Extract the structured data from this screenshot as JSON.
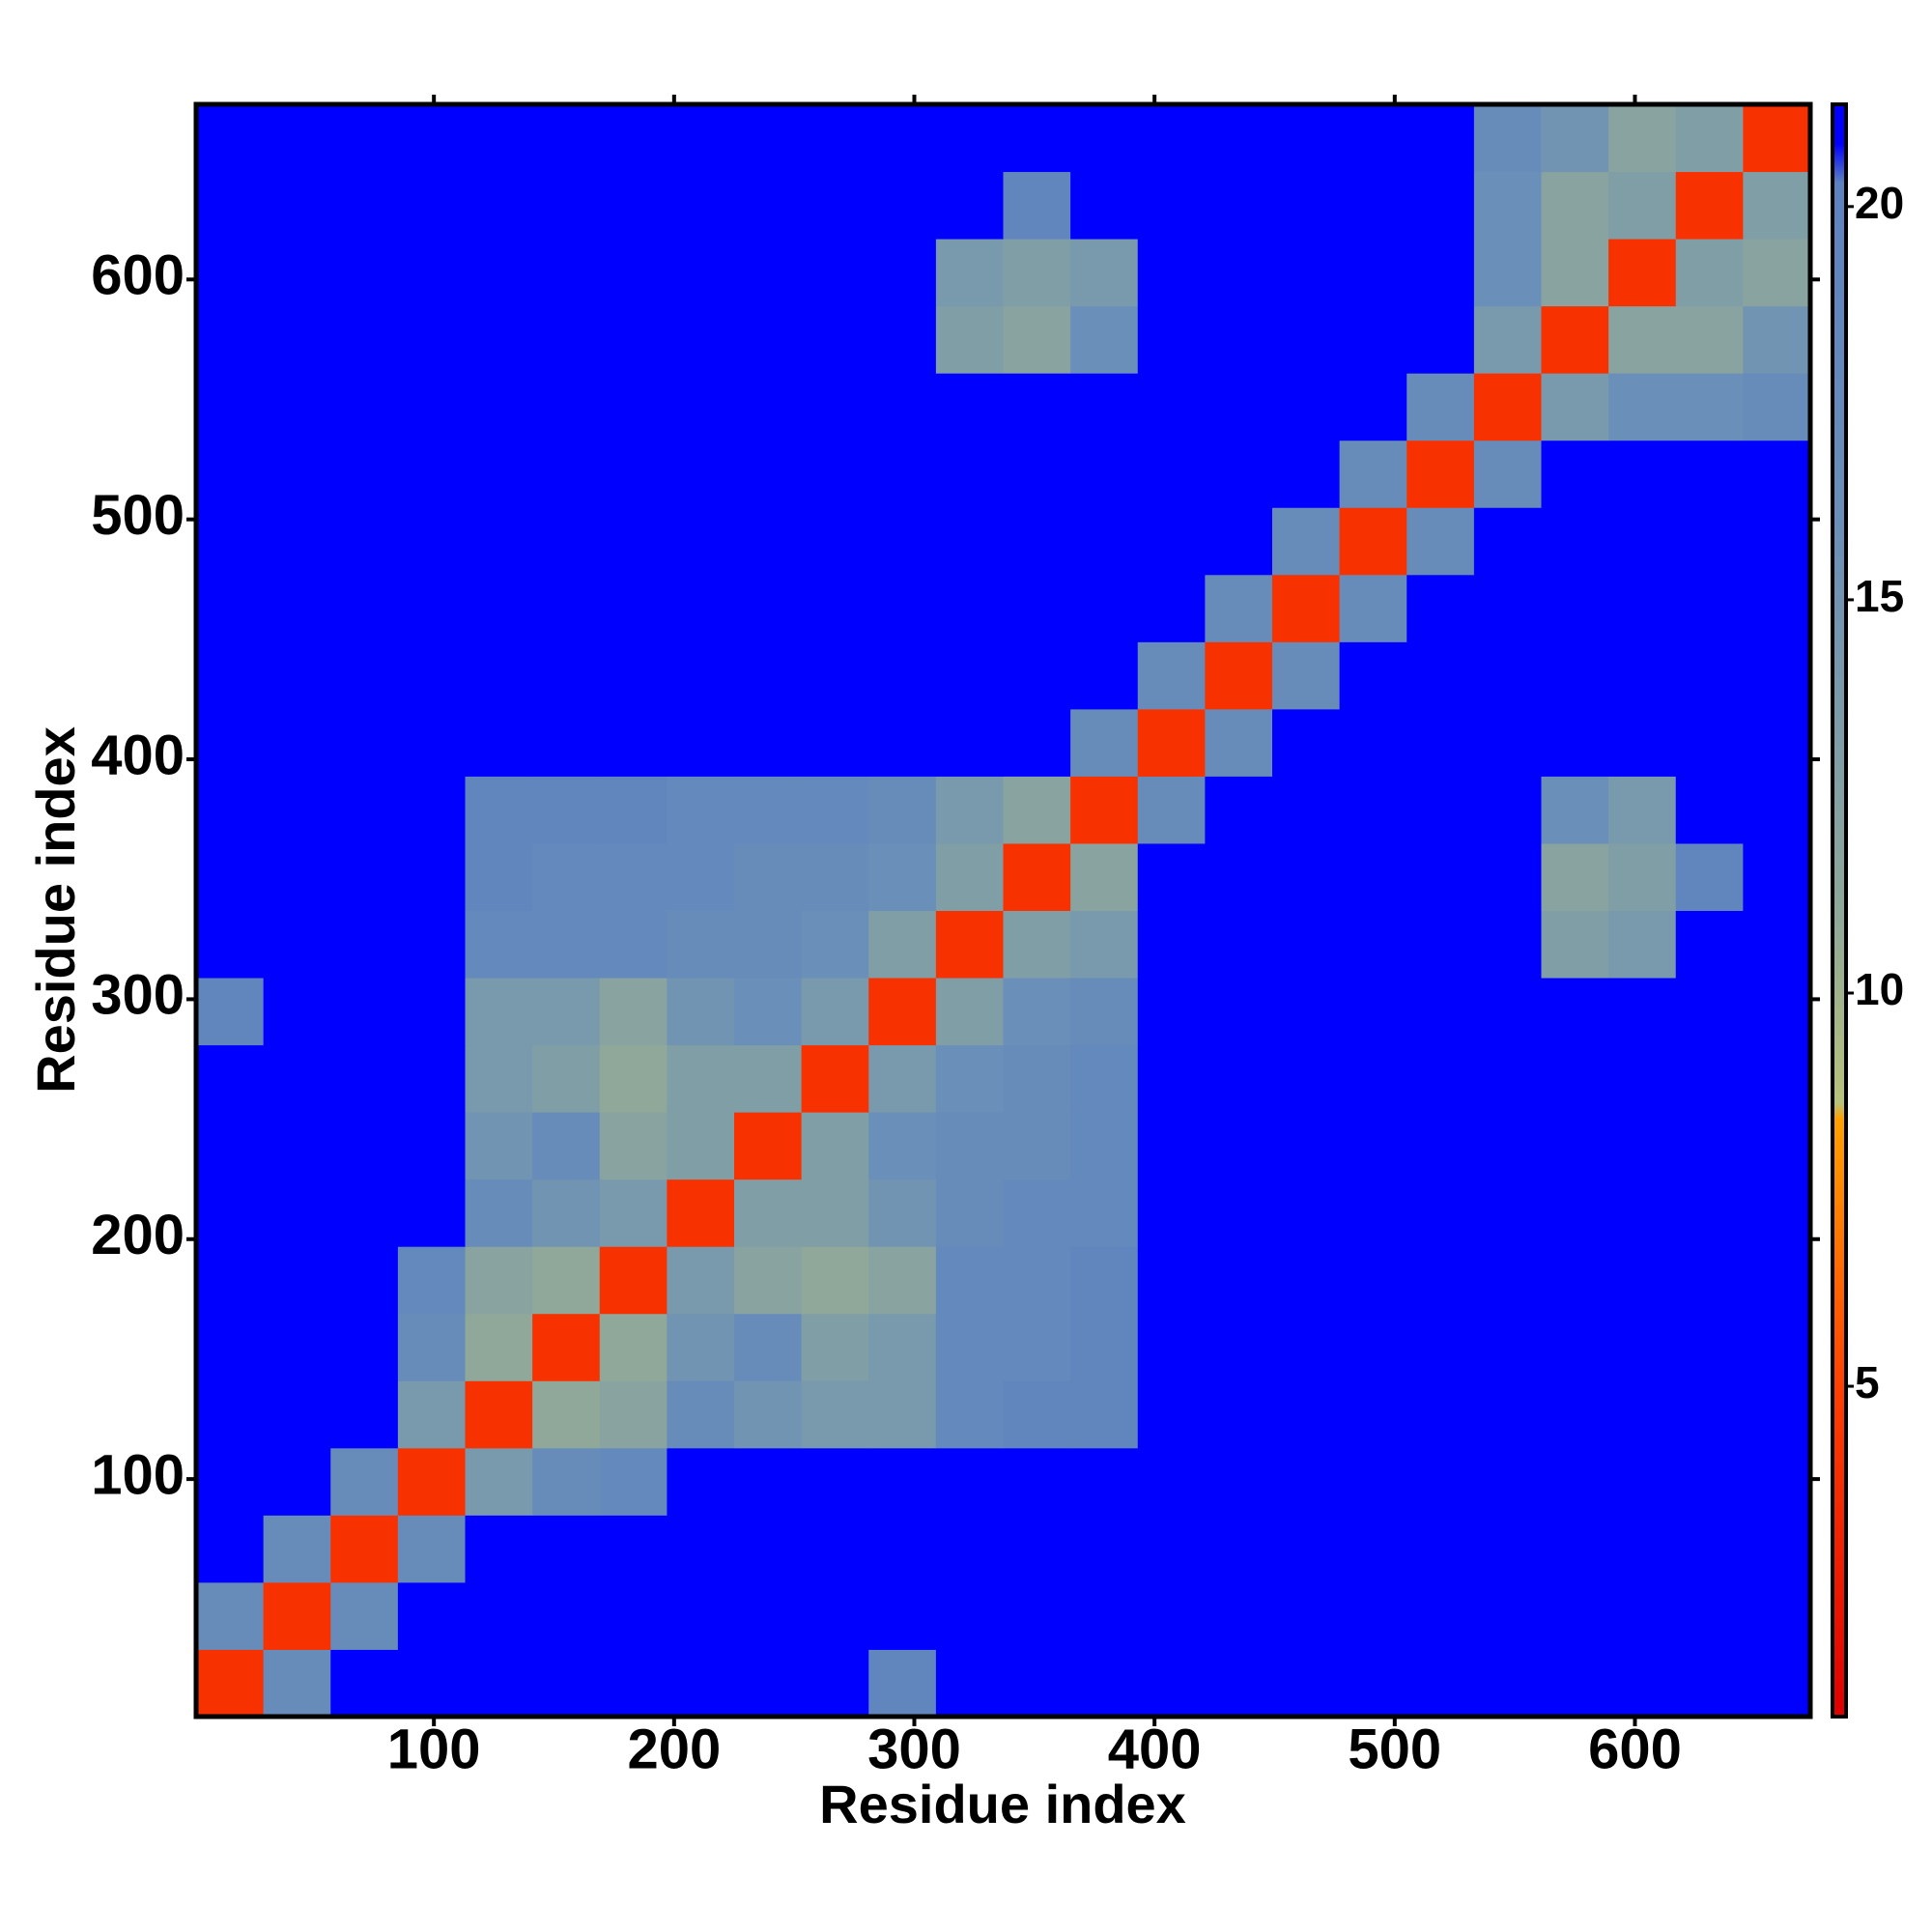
{
  "chart_data": {
    "type": "heatmap",
    "xlabel": "Residue index",
    "ylabel": "Residue index",
    "xlim": [
      1,
      673
    ],
    "ylim": [
      1,
      673
    ],
    "xticks": [
      100,
      200,
      300,
      400,
      500,
      600
    ],
    "yticks": [
      100,
      200,
      300,
      400,
      500,
      600
    ],
    "xbins": [
      1,
      29,
      57,
      85,
      113,
      141,
      169,
      197,
      225,
      253,
      281,
      309,
      337,
      365,
      393,
      421,
      449,
      477,
      505,
      533,
      561,
      589,
      617,
      645,
      673
    ],
    "ybins": [
      1,
      29,
      57,
      85,
      113,
      141,
      169,
      197,
      225,
      253,
      281,
      309,
      337,
      365,
      393,
      421,
      449,
      477,
      505,
      533,
      561,
      589,
      617,
      645,
      673
    ],
    "z": [
      [
        4,
        17,
        21,
        21,
        21,
        21,
        21,
        21,
        21,
        21,
        19,
        21,
        21,
        21,
        21,
        21,
        21,
        21,
        21,
        21,
        21,
        21,
        21,
        21
      ],
      [
        17,
        4,
        17,
        21,
        21,
        21,
        21,
        21,
        21,
        21,
        21,
        21,
        21,
        21,
        21,
        21,
        21,
        21,
        21,
        21,
        21,
        21,
        21,
        21
      ],
      [
        21,
        17,
        4,
        17,
        21,
        21,
        21,
        21,
        21,
        21,
        21,
        21,
        21,
        21,
        21,
        21,
        21,
        21,
        21,
        21,
        21,
        21,
        21,
        21
      ],
      [
        21,
        21,
        17,
        4,
        14,
        17,
        18,
        21,
        21,
        21,
        21,
        21,
        21,
        21,
        21,
        21,
        21,
        21,
        21,
        21,
        21,
        21,
        21,
        21
      ],
      [
        21,
        21,
        21,
        14,
        4,
        11,
        12,
        17,
        15,
        14,
        14,
        18,
        19,
        19,
        21,
        21,
        21,
        21,
        21,
        21,
        21,
        21,
        21,
        21
      ],
      [
        21,
        21,
        21,
        17,
        11,
        4,
        11,
        15,
        17,
        13,
        14,
        18,
        18,
        19,
        21,
        21,
        21,
        21,
        21,
        21,
        21,
        21,
        21,
        21
      ],
      [
        21,
        21,
        21,
        18,
        12,
        11,
        4,
        14,
        12,
        11,
        12,
        18,
        18,
        19,
        21,
        21,
        21,
        21,
        21,
        21,
        21,
        21,
        21,
        21
      ],
      [
        21,
        21,
        21,
        21,
        17,
        15,
        14,
        4,
        13,
        13,
        15,
        17,
        18,
        18,
        21,
        21,
        21,
        21,
        21,
        21,
        21,
        21,
        21,
        21
      ],
      [
        21,
        21,
        21,
        21,
        15,
        17,
        12,
        13,
        4,
        13,
        16,
        17,
        17,
        18,
        21,
        21,
        21,
        21,
        21,
        21,
        21,
        21,
        21,
        21
      ],
      [
        21,
        21,
        21,
        21,
        14,
        13,
        11,
        13,
        13,
        4,
        14,
        16,
        17,
        18,
        21,
        21,
        21,
        21,
        21,
        21,
        21,
        21,
        21,
        21
      ],
      [
        19,
        21,
        21,
        21,
        14,
        14,
        12,
        15,
        16,
        14,
        4,
        13,
        16,
        17,
        21,
        21,
        21,
        21,
        21,
        21,
        21,
        21,
        21,
        21
      ],
      [
        21,
        21,
        21,
        21,
        18,
        18,
        18,
        17,
        17,
        16,
        13,
        4,
        13,
        14,
        21,
        21,
        21,
        21,
        21,
        21,
        13,
        14,
        21,
        21
      ],
      [
        21,
        21,
        21,
        21,
        19,
        18,
        18,
        18,
        17,
        17,
        16,
        13,
        4,
        12,
        21,
        21,
        21,
        21,
        21,
        21,
        12,
        13,
        19,
        21
      ],
      [
        21,
        21,
        21,
        21,
        19,
        19,
        19,
        18,
        18,
        18,
        17,
        14,
        12,
        4,
        17,
        21,
        21,
        21,
        21,
        21,
        16,
        14,
        21,
        21
      ],
      [
        21,
        21,
        21,
        21,
        21,
        21,
        21,
        21,
        21,
        21,
        21,
        21,
        21,
        17,
        4,
        17,
        21,
        21,
        21,
        21,
        21,
        21,
        21,
        21
      ],
      [
        21,
        21,
        21,
        21,
        21,
        21,
        21,
        21,
        21,
        21,
        21,
        21,
        21,
        21,
        17,
        4,
        17,
        21,
        21,
        21,
        21,
        21,
        21,
        21
      ],
      [
        21,
        21,
        21,
        21,
        21,
        21,
        21,
        21,
        21,
        21,
        21,
        21,
        21,
        21,
        21,
        17,
        4,
        17,
        21,
        21,
        21,
        21,
        21,
        21
      ],
      [
        21,
        21,
        21,
        21,
        21,
        21,
        21,
        21,
        21,
        21,
        21,
        21,
        21,
        21,
        21,
        21,
        17,
        4,
        17,
        21,
        21,
        21,
        21,
        21
      ],
      [
        21,
        21,
        21,
        21,
        21,
        21,
        21,
        21,
        21,
        21,
        21,
        21,
        21,
        21,
        21,
        21,
        21,
        17,
        4,
        17,
        21,
        21,
        21,
        21
      ],
      [
        21,
        21,
        21,
        21,
        21,
        21,
        21,
        21,
        21,
        21,
        21,
        21,
        21,
        21,
        21,
        21,
        21,
        21,
        17,
        4,
        14,
        16,
        16,
        17
      ],
      [
        21,
        21,
        21,
        21,
        21,
        21,
        21,
        21,
        21,
        21,
        21,
        13,
        12,
        16,
        21,
        21,
        21,
        21,
        21,
        14,
        4,
        12,
        12,
        15
      ],
      [
        21,
        21,
        21,
        21,
        21,
        21,
        21,
        21,
        21,
        21,
        21,
        14,
        13,
        14,
        21,
        21,
        21,
        21,
        21,
        16,
        12,
        4,
        13,
        12
      ],
      [
        21,
        21,
        21,
        21,
        21,
        21,
        21,
        21,
        21,
        21,
        21,
        21,
        19,
        21,
        21,
        21,
        21,
        21,
        21,
        16,
        12,
        13,
        4,
        13
      ],
      [
        21,
        21,
        21,
        21,
        21,
        21,
        21,
        21,
        21,
        21,
        21,
        21,
        21,
        21,
        21,
        21,
        21,
        21,
        21,
        17,
        15,
        12,
        13,
        4
      ]
    ],
    "clim": [
      0.8,
      21.3
    ],
    "cticks": [
      5,
      10,
      15,
      20
    ],
    "colorscale": [
      [
        0.8,
        "#e00000"
      ],
      [
        5,
        "#ff4000"
      ],
      [
        8.4,
        "#ffa000"
      ],
      [
        8.6,
        "#b8c27a"
      ],
      [
        11,
        "#8fa89a"
      ],
      [
        16,
        "#6a8fb8"
      ],
      [
        20.3,
        "#5d82c0"
      ],
      [
        20.8,
        "#0000ff"
      ],
      [
        21.3,
        "#0000ff"
      ]
    ]
  }
}
